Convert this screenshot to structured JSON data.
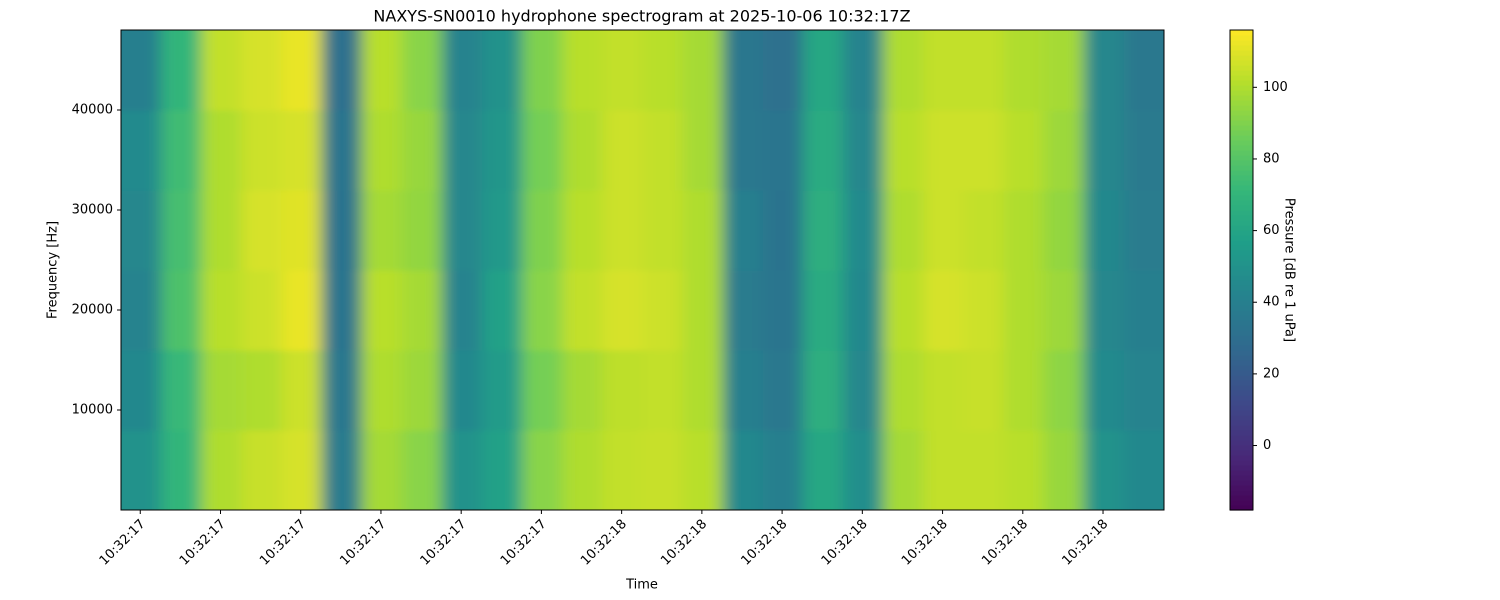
{
  "chart_data": {
    "type": "heatmap",
    "title": "NAXYS-SN0010 hydrophone spectrogram at 2025-10-06 10:32:17Z",
    "xlabel": "Time",
    "ylabel": "Frequency [Hz]",
    "colorbar_label": "Pressure [dB re 1 uPa]",
    "x_tick_labels": [
      "10:32:17",
      "10:32:17",
      "10:32:17",
      "10:32:17",
      "10:32:17",
      "10:32:17",
      "10:32:18",
      "10:32:18",
      "10:32:18",
      "10:32:18",
      "10:32:18",
      "10:32:18",
      "10:32:18"
    ],
    "ylim": [
      0,
      48000
    ],
    "yticks": [
      10000,
      20000,
      30000,
      40000
    ],
    "y_bins": [
      0,
      8000,
      16000,
      24000,
      32000,
      40000,
      48000
    ],
    "colormap": "viridis",
    "clim": [
      -18,
      116
    ],
    "cticks": [
      0,
      20,
      40,
      60,
      80,
      100
    ],
    "z": [
      [
        50,
        70,
        100,
        105,
        108,
        38,
        98,
        92,
        50,
        58,
        92,
        100,
        104,
        105,
        102,
        45,
        40,
        62,
        48,
        98,
        104,
        104,
        102,
        95,
        50,
        45
      ],
      [
        45,
        72,
        98,
        100,
        106,
        36,
        100,
        96,
        45,
        55,
        88,
        98,
        103,
        104,
        100,
        40,
        36,
        66,
        44,
        100,
        104,
        105,
        100,
        93,
        46,
        42
      ],
      [
        42,
        78,
        102,
        106,
        112,
        34,
        102,
        98,
        42,
        58,
        92,
        104,
        108,
        106,
        100,
        38,
        34,
        64,
        45,
        102,
        108,
        106,
        100,
        96,
        44,
        40
      ],
      [
        44,
        76,
        100,
        108,
        110,
        33,
        98,
        94,
        44,
        54,
        90,
        102,
        106,
        104,
        100,
        40,
        33,
        66,
        46,
        100,
        106,
        104,
        100,
        94,
        45,
        38
      ],
      [
        46,
        74,
        100,
        106,
        108,
        34,
        100,
        95,
        44,
        52,
        88,
        100,
        106,
        104,
        98,
        36,
        34,
        64,
        44,
        102,
        106,
        106,
        102,
        96,
        44,
        37
      ],
      [
        40,
        70,
        104,
        108,
        112,
        32,
        102,
        92,
        42,
        50,
        90,
        102,
        104,
        102,
        98,
        35,
        32,
        62,
        42,
        100,
        104,
        104,
        100,
        98,
        44,
        36
      ]
    ]
  }
}
